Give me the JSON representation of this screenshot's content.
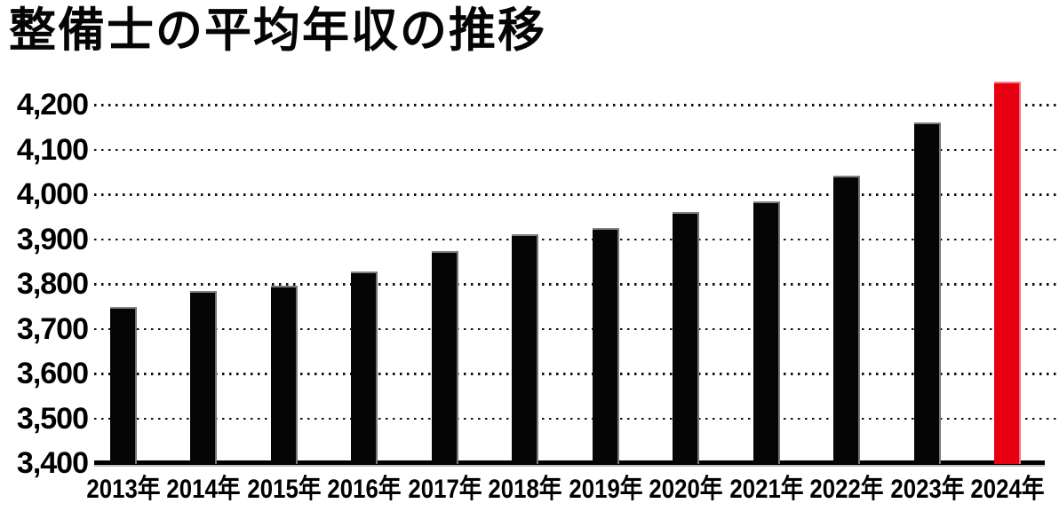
{
  "page": {
    "background": "#ffffff"
  },
  "chart_data": {
    "type": "bar",
    "title": "整備士の平均年収の推移",
    "categories": [
      "2013年",
      "2014年",
      "2015年",
      "2016年",
      "2017年",
      "2018年",
      "2019年",
      "2020年",
      "2021年",
      "2022年",
      "2023年",
      "2024年"
    ],
    "values": [
      3748,
      3784,
      3797,
      3828,
      3874,
      3911,
      3925,
      3961,
      3984,
      4042,
      4161,
      4252
    ],
    "highlight_index": 11,
    "colors": {
      "bar_default": "#050505",
      "bar_highlight": "#e60012",
      "gridline": "#101010",
      "axis_line": "#000000",
      "text": "#050505"
    },
    "y_ticks": [
      3400,
      3500,
      3600,
      3700,
      3800,
      3900,
      4000,
      4100,
      4200
    ],
    "y_tick_labels": [
      "3,400",
      "3,500",
      "3,600",
      "3,700",
      "3,800",
      "3,900",
      "4,000",
      "4,100",
      "4,200"
    ],
    "ylim": [
      3400,
      4260
    ],
    "xlabel": "",
    "ylabel": "",
    "grid": "horizontal dotted",
    "legend": "none"
  }
}
